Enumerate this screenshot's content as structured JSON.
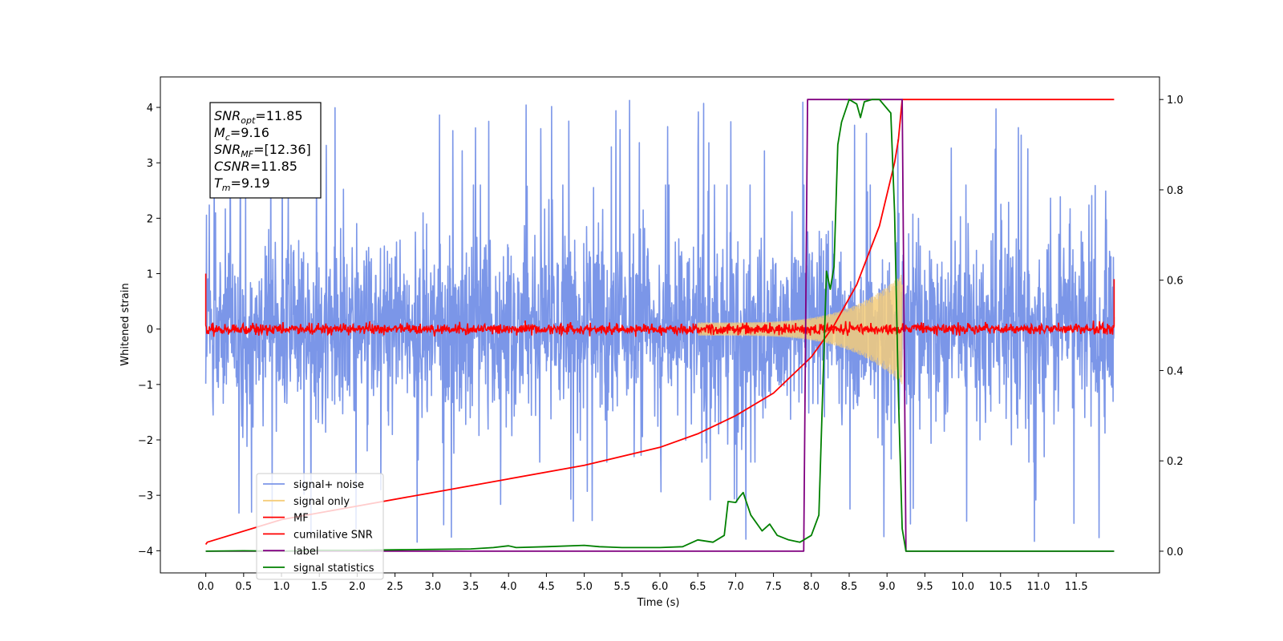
{
  "chart_data": {
    "type": "line",
    "xlabel": "Time (s)",
    "ylabel": "Whitened strain",
    "xlim": [
      -0.6,
      12.6
    ],
    "ylim": [
      -4.4,
      4.55
    ],
    "y2lim": [
      -0.048,
      1.05
    ],
    "x_ticks": [
      "0.0",
      "0.5",
      "1.0",
      "1.5",
      "2.0",
      "2.5",
      "3.0",
      "3.5",
      "4.0",
      "4.5",
      "5.0",
      "5.5",
      "6.0",
      "6.5",
      "7.0",
      "7.5",
      "8.0",
      "8.5",
      "9.0",
      "9.5",
      "10.0",
      "10.5",
      "11.0",
      "11.5"
    ],
    "y_ticks": [
      "−4",
      "−3",
      "−2",
      "−1",
      "0",
      "1",
      "2",
      "3",
      "4"
    ],
    "y2_ticks": [
      "0.0",
      "0.2",
      "0.4",
      "0.6",
      "0.8",
      "1.0"
    ],
    "annotation": [
      {
        "var": "SNR",
        "sub": "opt",
        "value": "=11.85"
      },
      {
        "var": "M",
        "sub": "c",
        "value": "=9.16"
      },
      {
        "var": "SNR",
        "sub": "MF",
        "value": "=[12.36]"
      },
      {
        "var": "CSNR",
        "sub": "",
        "value": "=11.85"
      },
      {
        "var": "T",
        "sub": "m",
        "value": "=9.19"
      }
    ],
    "legend": {
      "placement": "lower-left",
      "entries": [
        {
          "label": "signal+ noise",
          "color": "#7b96e8"
        },
        {
          "label": "signal only",
          "color": "#f5cd7a"
        },
        {
          "label": "MF",
          "color": "#ff0000"
        },
        {
          "label": "cumilative SNR",
          "color": "#ff0000"
        },
        {
          "label": "label",
          "color": "#800080"
        },
        {
          "label": "signal statistics",
          "color": "#008000"
        }
      ]
    },
    "series": [
      {
        "name": "signal+ noise",
        "axis": "left",
        "color": "#7b96e8",
        "x_range": [
          0.0,
          12.0
        ],
        "envelope": [
          -2.4,
          2.6
        ],
        "peaks_max": 4.15,
        "peaks_min": -3.85
      },
      {
        "name": "signal only",
        "axis": "left",
        "color": "#f5cd7a",
        "chirp_start": 6.5,
        "chirp_end": 9.2,
        "amplitude_end": 1.0
      },
      {
        "name": "MF",
        "axis": "left",
        "color": "#ff0000",
        "x_range": [
          0.0,
          12.0
        ],
        "level": 0.0,
        "noise": 0.1,
        "edge_value": 1.0
      },
      {
        "name": "cumilative SNR",
        "axis": "right",
        "color": "#ff0000",
        "x": [
          0.0,
          0.02,
          1.0,
          2.0,
          3.0,
          4.0,
          5.0,
          6.0,
          6.5,
          7.0,
          7.5,
          8.0,
          8.3,
          8.6,
          8.9,
          9.1,
          9.15,
          9.2,
          12.0
        ],
        "y": [
          0.015,
          0.02,
          0.07,
          0.1,
          0.13,
          0.16,
          0.19,
          0.23,
          0.26,
          0.3,
          0.35,
          0.43,
          0.5,
          0.59,
          0.72,
          0.86,
          0.91,
          1.0,
          1.0
        ]
      },
      {
        "name": "label",
        "axis": "right",
        "color": "#800080",
        "x": [
          0.0,
          7.9,
          7.95,
          9.2,
          9.25,
          12.0
        ],
        "y": [
          0.0,
          0.0,
          1.0,
          1.0,
          0.0,
          0.0
        ]
      },
      {
        "name": "signal statistics",
        "axis": "right",
        "color": "#008000",
        "x": [
          0.0,
          0.5,
          1.0,
          1.5,
          2.0,
          2.5,
          3.0,
          3.5,
          3.8,
          4.0,
          4.1,
          4.5,
          5.0,
          5.2,
          5.5,
          6.0,
          6.3,
          6.5,
          6.7,
          6.85,
          6.9,
          7.0,
          7.05,
          7.1,
          7.2,
          7.35,
          7.45,
          7.55,
          7.7,
          7.85,
          8.0,
          8.1,
          8.15,
          8.2,
          8.25,
          8.3,
          8.35,
          8.4,
          8.5,
          8.6,
          8.65,
          8.7,
          8.8,
          8.9,
          9.0,
          9.05,
          9.1,
          9.15,
          9.2,
          9.25,
          10.0,
          11.0,
          12.0
        ],
        "y": [
          0.0,
          0.001,
          0.0,
          0.002,
          0.002,
          0.003,
          0.004,
          0.005,
          0.008,
          0.012,
          0.008,
          0.01,
          0.013,
          0.01,
          0.008,
          0.008,
          0.01,
          0.025,
          0.02,
          0.035,
          0.11,
          0.108,
          0.12,
          0.13,
          0.08,
          0.045,
          0.06,
          0.035,
          0.025,
          0.02,
          0.035,
          0.08,
          0.35,
          0.62,
          0.58,
          0.63,
          0.9,
          0.95,
          1.0,
          0.99,
          0.96,
          0.995,
          1.0,
          1.0,
          0.98,
          0.97,
          0.75,
          0.35,
          0.05,
          0.0,
          0.0,
          0.0,
          0.0
        ]
      }
    ]
  }
}
